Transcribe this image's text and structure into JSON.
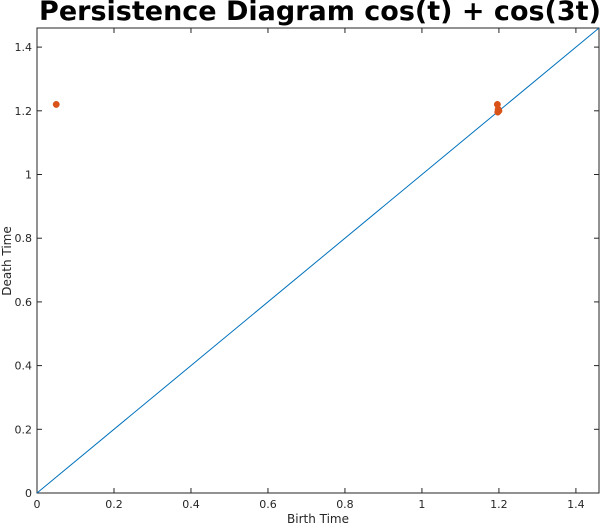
{
  "chart_data": {
    "type": "scatter",
    "title": "Persistence Diagram cos(t) + cos(3t)",
    "xlabel": "Birth Time",
    "ylabel": "Death Time",
    "xlim": [
      0,
      1.46
    ],
    "ylim": [
      0,
      1.46
    ],
    "x_ticks": [
      0,
      0.2,
      0.4,
      0.6,
      0.8,
      1,
      1.2,
      1.4
    ],
    "x_tick_labels": [
      "0",
      "0.2",
      "0.4",
      "0.6",
      "0.8",
      "1",
      "1.2",
      "1.4"
    ],
    "y_ticks": [
      0,
      0.2,
      0.4,
      0.6,
      0.8,
      1,
      1.2,
      1.4
    ],
    "y_tick_labels": [
      "0",
      "0.2",
      "0.4",
      "0.6",
      "0.8",
      "1",
      "1.2",
      "1.4"
    ],
    "grid": false,
    "diagonal": {
      "x": [
        0,
        1.46
      ],
      "y": [
        0,
        1.46
      ],
      "color": "#0072BD"
    },
    "series": [
      {
        "color": "#D95319",
        "x": [
          0.05,
          1.196,
          1.198,
          1.2,
          1.197
        ],
        "y": [
          1.22,
          1.22,
          1.205,
          1.2,
          1.196
        ]
      }
    ]
  }
}
